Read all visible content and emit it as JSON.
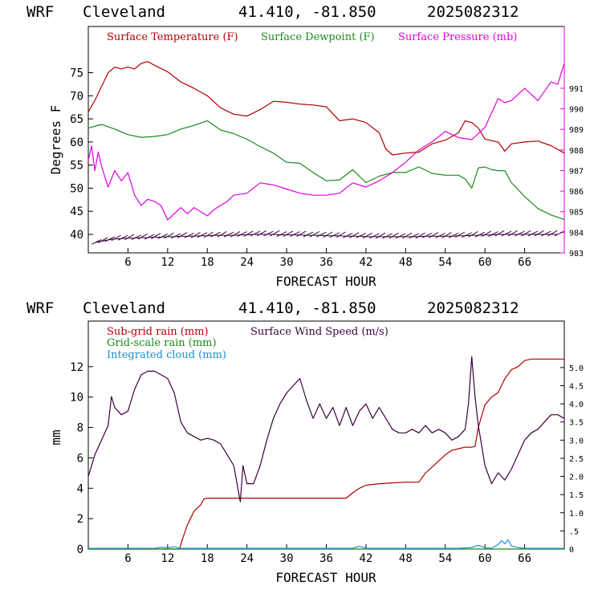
{
  "chart_data": [
    {
      "type": "line",
      "header": {
        "model": "WRF",
        "location": "Cleveland",
        "coords": "41.410, -81.850",
        "init": "2025082312"
      },
      "xlabel": "FORECAST HOUR",
      "ylabel": "Degrees F",
      "xlim": [
        0,
        72
      ],
      "ylim": [
        36,
        85
      ],
      "y2lim": [
        983,
        994
      ],
      "x_ticks": [
        "6",
        "12",
        "18",
        "24",
        "30",
        "36",
        "42",
        "48",
        "54",
        "60",
        "66"
      ],
      "y_ticks": [
        "40",
        "45",
        "50",
        "55",
        "60",
        "65",
        "70",
        "75"
      ],
      "y2_ticks": [
        "983",
        "984",
        "985",
        "986",
        "987",
        "988",
        "989",
        "990",
        "991"
      ],
      "grid": false,
      "series": [
        {
          "name": "Surface Temperature (F)",
          "color": "#b00000",
          "axis": "left",
          "x": [
            0,
            1,
            2,
            3,
            4,
            5,
            6,
            7,
            8,
            9,
            10,
            12,
            14,
            16,
            18,
            20,
            22,
            24,
            26,
            28,
            30,
            32,
            34,
            36,
            38,
            40,
            42,
            44,
            45,
            46,
            48,
            50,
            52,
            54,
            56,
            57,
            58,
            59,
            60,
            62,
            63,
            64,
            66,
            68,
            70,
            72
          ],
          "y": [
            66.5,
            69,
            72,
            75,
            76.2,
            75.8,
            76.2,
            75.8,
            77,
            77.4,
            76.6,
            75.2,
            73,
            71.6,
            70,
            67.4,
            66,
            65.6,
            67,
            68.8,
            68.6,
            68.2,
            68,
            67.6,
            64.6,
            65,
            64.2,
            62,
            58.5,
            57.2,
            57.6,
            57.8,
            59.6,
            60.4,
            62,
            64.6,
            64.2,
            63,
            60.6,
            60,
            58,
            59.6,
            60,
            60.2,
            59.2,
            57.6
          ]
        },
        {
          "name": "Surface Dewpoint (F)",
          "color": "#1a8a1a",
          "axis": "left",
          "x": [
            0,
            2,
            4,
            6,
            8,
            10,
            12,
            14,
            16,
            18,
            20,
            22,
            24,
            26,
            28,
            30,
            32,
            34,
            36,
            38,
            40,
            42,
            44,
            46,
            48,
            50,
            52,
            54,
            56,
            57,
            58,
            59,
            60,
            61,
            62,
            63,
            64,
            66,
            68,
            70,
            72
          ],
          "y": [
            63,
            63.8,
            62.8,
            61.6,
            61,
            61.2,
            61.6,
            62.8,
            63.6,
            64.6,
            62.6,
            61.8,
            60.6,
            59,
            57.6,
            55.6,
            55.4,
            53.4,
            51.6,
            51.8,
            54,
            51.2,
            52.6,
            53.4,
            53.4,
            54.6,
            53.2,
            52.8,
            52.8,
            52,
            50,
            54.4,
            54.6,
            54,
            53.8,
            53.8,
            51.2,
            48.2,
            45.6,
            44.2,
            43.2
          ]
        },
        {
          "name": "Surface Pressure (mb)",
          "color": "#e000e0",
          "axis": "right",
          "x": [
            0,
            0.5,
            1,
            1.5,
            2,
            3,
            4,
            5,
            6,
            7,
            8,
            9,
            10,
            11,
            12,
            13,
            14,
            15,
            16,
            18,
            19,
            20,
            21,
            22,
            24,
            26,
            28,
            30,
            32,
            34,
            36,
            38,
            40,
            42,
            44,
            46,
            48,
            50,
            52,
            54,
            56,
            58,
            59,
            60,
            61,
            62,
            63,
            64,
            66,
            68,
            70,
            71,
            72
          ],
          "y": [
            987.5,
            988.2,
            987,
            987.9,
            987.2,
            986.2,
            987,
            986.5,
            986.9,
            985.8,
            985.3,
            985.6,
            985.5,
            985.3,
            984.6,
            984.9,
            985.2,
            984.9,
            985.2,
            984.8,
            985.1,
            985.3,
            985.5,
            985.8,
            985.9,
            986.4,
            986.3,
            986.1,
            985.9,
            985.8,
            985.8,
            985.9,
            986.4,
            986.2,
            986.5,
            986.9,
            987.4,
            988.0,
            988.4,
            988.9,
            988.6,
            988.5,
            988.8,
            989.1,
            989.8,
            990.5,
            990.3,
            990.4,
            991.0,
            990.4,
            991.3,
            991.2,
            992.2
          ]
        },
        {
          "name": "Wind barbs",
          "color": "#3a0040",
          "axis": "left",
          "type": "barbs",
          "x": [
            1,
            2,
            3,
            4,
            5,
            6,
            7,
            8,
            9,
            10,
            11,
            12,
            13,
            14,
            15,
            16,
            17,
            18,
            19,
            20,
            21,
            22,
            23,
            24,
            25,
            26,
            27,
            28,
            29,
            30,
            31,
            32,
            33,
            34,
            35,
            36,
            37,
            38,
            39,
            40,
            41,
            42,
            43,
            44,
            45,
            46,
            47,
            48,
            49,
            50,
            51,
            52,
            53,
            54,
            55,
            56,
            57,
            58,
            59,
            60,
            61,
            62,
            63,
            64,
            65,
            66,
            67,
            68,
            69,
            70,
            71
          ],
          "y": [
            38.2,
            38.5,
            38.8,
            39,
            39.1,
            39.2,
            39.2,
            39.3,
            39.3,
            39.4,
            39.4,
            39.5,
            39.5,
            39.6,
            39.6,
            39.6,
            39.7,
            39.7,
            39.8,
            39.8,
            39.8,
            39.8,
            39.9,
            39.9,
            40,
            40,
            40,
            40,
            39.9,
            39.9,
            39.9,
            39.9,
            39.8,
            39.8,
            39.8,
            39.7,
            39.7,
            39.7,
            39.6,
            39.6,
            39.6,
            39.5,
            39.5,
            39.5,
            39.5,
            39.5,
            39.5,
            39.5,
            39.5,
            39.5,
            39.6,
            39.6,
            39.6,
            39.6,
            39.6,
            39.7,
            39.7,
            39.8,
            39.8,
            39.9,
            39.9,
            40,
            40,
            40,
            40,
            40,
            40,
            40,
            40,
            40,
            40
          ]
        }
      ]
    },
    {
      "type": "line",
      "header": {
        "model": "WRF",
        "location": "Cleveland",
        "coords": "41.410, -81.850",
        "init": "2025082312"
      },
      "xlabel": "FORECAST HOUR",
      "ylabel": "mm",
      "xlim": [
        0,
        72
      ],
      "ylim": [
        0,
        15
      ],
      "y2lim": [
        0,
        6.28
      ],
      "x_ticks": [
        "6",
        "12",
        "18",
        "24",
        "30",
        "36",
        "42",
        "48",
        "54",
        "60",
        "66"
      ],
      "y_ticks": [
        "0",
        "2",
        "4",
        "6",
        "8",
        "10",
        "12"
      ],
      "y2_ticks": [
        "0",
        ".5",
        "1.0",
        "1.5",
        "2.0",
        "2.5",
        "3.0",
        "3.5",
        "4.0",
        "4.5",
        "5.0"
      ],
      "grid": false,
      "series": [
        {
          "name": "Sub-grid rain (mm)",
          "color": "#b00000",
          "axis": "left",
          "x": [
            0,
            13.8,
            14.2,
            15,
            16,
            17,
            17.5,
            18,
            20,
            22,
            24,
            26,
            28,
            30,
            32,
            34,
            36,
            39,
            40,
            41,
            42,
            44,
            46,
            48,
            50,
            51,
            52,
            54,
            55,
            56,
            57,
            58,
            58.5,
            59,
            60,
            61,
            62,
            63,
            64,
            65,
            66,
            67,
            68,
            70,
            72
          ],
          "y": [
            0,
            0,
            0.6,
            1.6,
            2.5,
            2.9,
            3.3,
            3.35,
            3.35,
            3.35,
            3.35,
            3.35,
            3.35,
            3.35,
            3.35,
            3.35,
            3.35,
            3.35,
            3.7,
            4.0,
            4.2,
            4.3,
            4.35,
            4.4,
            4.4,
            5.0,
            5.4,
            6.2,
            6.5,
            6.6,
            6.7,
            6.7,
            6.75,
            8.0,
            9.5,
            10.0,
            10.3,
            11.2,
            11.8,
            12.0,
            12.4,
            12.5,
            12.5,
            12.5,
            12.5
          ]
        },
        {
          "name": "Surface Wind Speed (m/s)",
          "color": "#3a0040",
          "axis": "right",
          "x": [
            0,
            1,
            2,
            3,
            3.5,
            4,
            5,
            6,
            7,
            8,
            9,
            10,
            11,
            12,
            13,
            14,
            15,
            16,
            17,
            18,
            19,
            20,
            21,
            22,
            22.6,
            23,
            23.4,
            24,
            25,
            26,
            27,
            28,
            29,
            30,
            31,
            32,
            33,
            34,
            35,
            36,
            37,
            38,
            39,
            40,
            41,
            42,
            43,
            44,
            45,
            46,
            47,
            48,
            49,
            50,
            51,
            52,
            53,
            54,
            55,
            56,
            57,
            57.5,
            58,
            58.5,
            59,
            60,
            61,
            62,
            63,
            64,
            65,
            66,
            67,
            68,
            69,
            70,
            71,
            72
          ],
          "y": [
            2.0,
            2.6,
            3.0,
            3.4,
            4.2,
            3.9,
            3.7,
            3.8,
            4.4,
            4.8,
            4.9,
            4.9,
            4.8,
            4.7,
            4.3,
            3.5,
            3.2,
            3.1,
            3.0,
            3.05,
            3.0,
            2.9,
            2.6,
            2.3,
            1.7,
            1.3,
            2.3,
            1.8,
            1.8,
            2.3,
            3.0,
            3.6,
            4.0,
            4.3,
            4.5,
            4.7,
            4.1,
            3.6,
            4.0,
            3.6,
            3.9,
            3.4,
            3.9,
            3.4,
            3.8,
            4.0,
            3.6,
            3.9,
            3.6,
            3.3,
            3.2,
            3.2,
            3.3,
            3.2,
            3.4,
            3.2,
            3.3,
            3.2,
            3.0,
            3.1,
            3.3,
            4.0,
            5.3,
            4.2,
            3.4,
            2.3,
            1.8,
            2.1,
            1.9,
            2.2,
            2.6,
            3.0,
            3.2,
            3.3,
            3.5,
            3.7,
            3.7,
            3.6
          ]
        },
        {
          "name": "Grid-scale rain (mm)",
          "color": "#1a8a1a",
          "axis": "left",
          "x": [
            0,
            72
          ],
          "y": [
            0,
            0
          ]
        },
        {
          "name": "Integrated cloud (mm)",
          "color": "#1a8fd0",
          "axis": "left",
          "x": [
            0,
            10,
            11,
            12,
            13,
            14,
            40,
            41,
            42,
            56,
            58,
            59,
            60,
            61,
            62,
            62.5,
            63,
            63.5,
            64,
            65,
            66,
            72
          ],
          "y": [
            0.05,
            0.05,
            0.12,
            0.08,
            0.15,
            0.05,
            0.05,
            0.18,
            0.05,
            0.05,
            0.1,
            0.25,
            0.08,
            0.05,
            0.3,
            0.55,
            0.35,
            0.6,
            0.2,
            0.1,
            0.05,
            0.05
          ]
        }
      ]
    }
  ]
}
